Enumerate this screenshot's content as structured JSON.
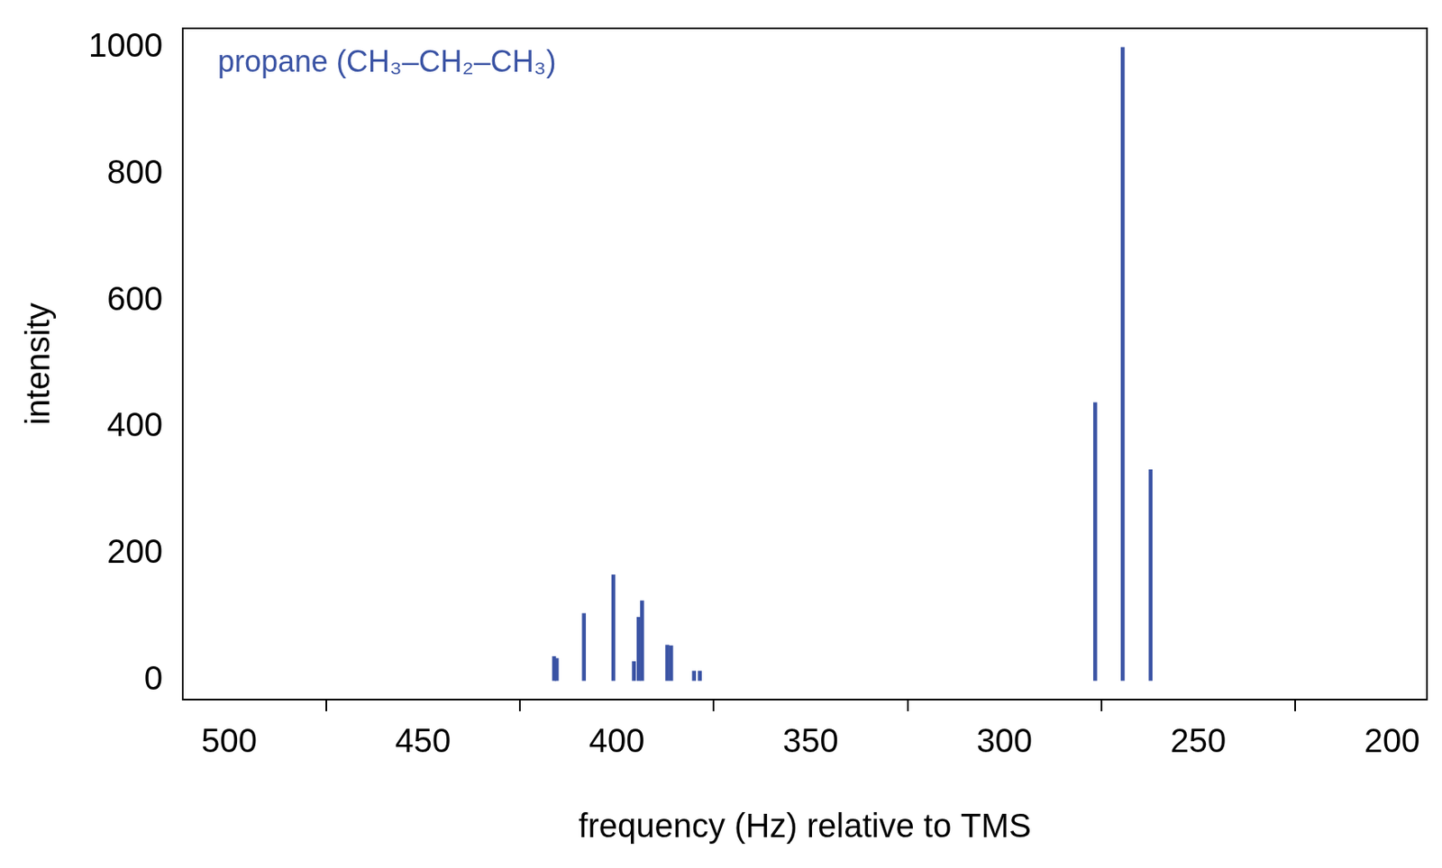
{
  "chart_data": {
    "type": "bar",
    "title": "propane (CH₃–CH₂–CH₃)",
    "x_label": "frequency (Hz) relative to TMS",
    "y_label": "intensity",
    "x": [
      416.2,
      415.5,
      408.5,
      400.9,
      395.6,
      394.4,
      393.5,
      387.0,
      386.0,
      380.1,
      378.6,
      276.6,
      269.5,
      262.3
    ],
    "values": [
      38,
      35,
      106,
      167,
      30,
      100,
      126,
      56,
      55,
      15,
      15,
      439,
      1000,
      333
    ],
    "color": "#3a53a4",
    "xlim": [
      512,
      191
    ],
    "xticks": [
      500,
      450,
      400,
      350,
      300,
      250,
      200
    ],
    "ylim": [
      -30,
      1030
    ],
    "yticks": [
      0,
      200,
      400,
      600,
      800,
      1000
    ],
    "grid": false
  }
}
